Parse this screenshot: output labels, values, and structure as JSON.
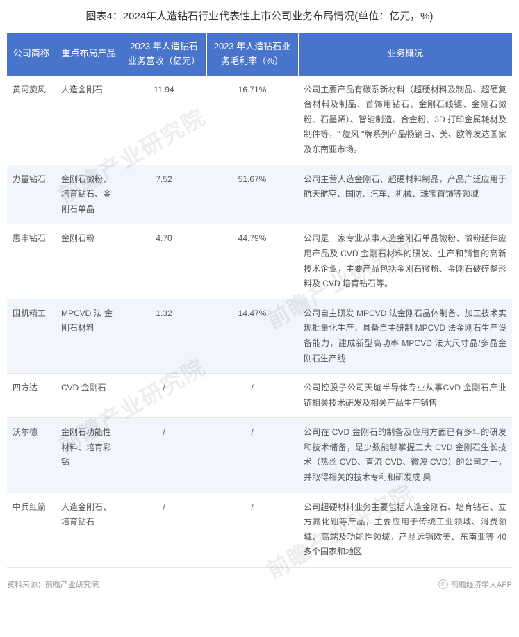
{
  "title": "图表4：2024年人造钻石行业代表性上市公司业务布局情况(单位：亿元，%)",
  "columns": [
    "公司简称",
    "重点布局产品",
    "2023 年人造钻石业务营收（亿元）",
    "2023 年人造钻石业务毛利率（%）",
    "业务概况"
  ],
  "columnWidths": [
    "70px",
    "95px",
    "122px",
    "132px",
    "auto"
  ],
  "headerBg": "#4874cb",
  "headerColor": "#ffffff",
  "rowAltBg": "#f2f5fb",
  "borderColor": "#e6e6e6",
  "textColor": "#555555",
  "rows": [
    {
      "company": "黄河旋风",
      "product": "人造金刚石",
      "revenue": "11.94",
      "margin": "16.71%",
      "overview": "公司主要产品有碳系新材料（超硬材料及制品、超硬复合材料及制品、首饰用钻石、金刚石线锯、金刚石微粉、石墨烯）、智能制造、合金粉、3D 打印金属耗材及制件等，\" 旋风 \"牌系列产品畅销日、美、欧等发达国家及东南亚市场。"
    },
    {
      "company": "力量钻石",
      "product": "金刚石微粉、培育钻石、金刚石单晶",
      "revenue": "7.52",
      "margin": "51.67%",
      "overview": "公司主营人造金刚石、超硬材料制品，产品广泛应用于航天航空、国防、汽车、机械、珠宝首饰等领域"
    },
    {
      "company": "惠丰钻石",
      "product": "金刚石粉",
      "revenue": "4.70",
      "margin": "44.79%",
      "overview": "公司是一家专业从事人造金刚石单晶微粉、微粉延伸应用产品及 CVD 金刚石材料的研发、生产和销售的高新技术企业，主要产品包括金刚石微粉、金刚石破碎整形料及 CVD 培育钻石等。"
    },
    {
      "company": "国机精工",
      "product": "MPCVD 法 金刚石材料",
      "revenue": "1.32",
      "margin": "14.47%",
      "overview": "公司自主研发 MPCVD 法金刚石晶体制备、加工技术实现批量化生产，具备自主研制 MPCVD 法金刚石生产设备能力，建成新型高功率 MPCVD 法大尺寸晶/多晶金刚石生产线"
    },
    {
      "company": "四方达",
      "product": "CVD 金刚石",
      "revenue": "/",
      "margin": "/",
      "overview": "公司控股子公司天璇半导体专业从事CVD 金刚石产业链相关技术研发及相关产品生产销售"
    },
    {
      "company": "沃尔德",
      "product": "金刚石功能性材料、培育彩钻",
      "revenue": "/",
      "margin": "/",
      "overview": "公司在 CVD 金刚石的制备及应用方面已有多年的研发和技术储备，是少数能够掌握三大 CVD 金刚石生长技术（热丝 CVD、直流 CVD、微波 CVD）的公司之一，并取得相关的技术专利和研发成 果"
    },
    {
      "company": "中兵红箭",
      "product": "人造金刚石、培育钻石",
      "revenue": "/",
      "margin": "/",
      "overview": "公司超硬材料业务主要包括人造金刚石、培育钻石、立方氮化硼等产品，主要应用于传统工业领域、消费领域、高端及功能性领域，产品远销欧美、东南亚等 40 多个国家和地区"
    }
  ],
  "sourceLabel": "资料来源：前瞻产业研究院",
  "copyright": "前瞻经济学人APP",
  "watermarkText": "前瞻产业研究院"
}
